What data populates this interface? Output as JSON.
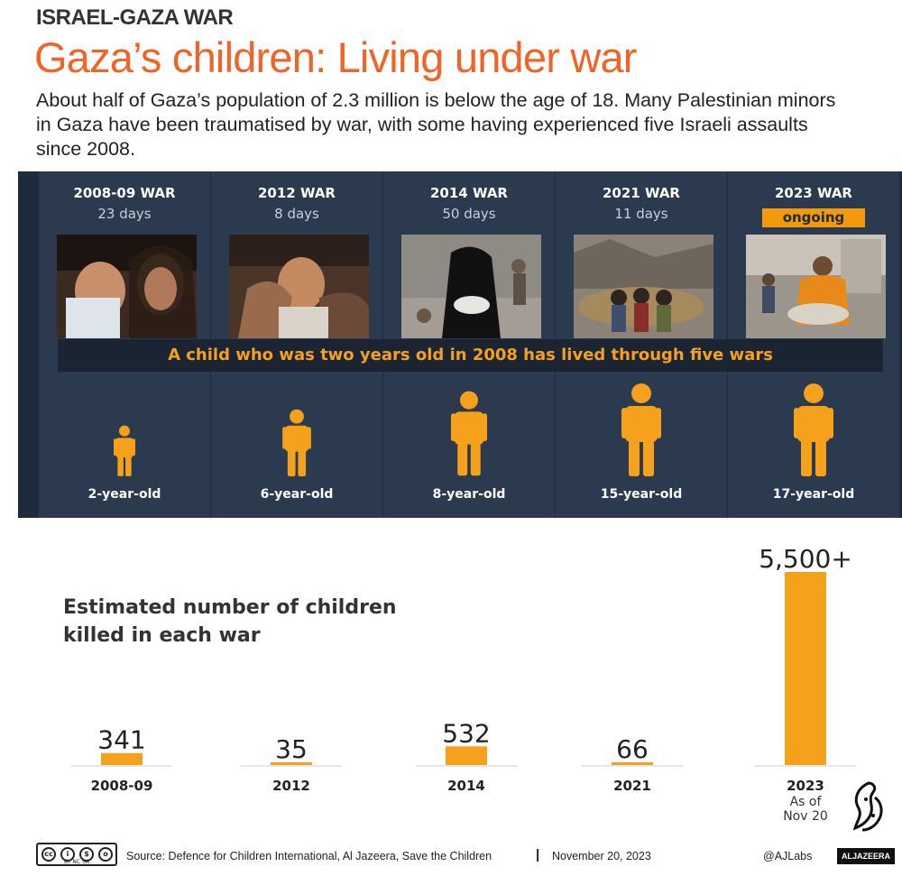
{
  "header": {
    "kicker": "ISRAEL-GAZA WAR",
    "title": "Gaza’s children: Living under war",
    "intro": "About half of Gaza’s population of 2.3 million is below the age of 18. Many Palestinian minors in Gaza have been traumatised by war, with some having experienced five Israeli assaults since 2008."
  },
  "wars": [
    {
      "title": "2008-09 WAR",
      "days": "23 days",
      "age": "2-year-old",
      "figure_scale": 0.55
    },
    {
      "title": "2012 WAR",
      "days": "8 days",
      "age": "6-year-old",
      "figure_scale": 0.72
    },
    {
      "title": "2014 WAR",
      "days": "50 days",
      "age": "8-year-old",
      "figure_scale": 0.92
    },
    {
      "title": "2021 WAR",
      "days": "11 days",
      "age": "15-year-old",
      "figure_scale": 1.0
    },
    {
      "title": "2023 WAR",
      "days": "ongoing",
      "age": "17-year-old",
      "figure_scale": 1.0
    }
  ],
  "banner": "A child who was two years old in 2008 has lived through five wars",
  "chart_data": {
    "type": "bar",
    "title": "Estimated number of children killed in each war",
    "categories": [
      "2008-09",
      "2012",
      "2014",
      "2021",
      "2023"
    ],
    "values": [
      341,
      35,
      532,
      66,
      5500
    ],
    "value_labels": [
      "341",
      "35",
      "532",
      "66",
      "5,500+"
    ],
    "category_notes": [
      "",
      "",
      "",
      "",
      "As of Nov 20"
    ],
    "ylim": [
      0,
      5500
    ],
    "grid": false,
    "legend": "none",
    "bar_color": "#f5a11b"
  },
  "footer": {
    "cc_label": "BY  NC  SA",
    "source": "Source: Defence for Children International, Al Jazeera, Save the Children",
    "separator": "|",
    "date": "November 20, 2023",
    "handle": "@AJLabs",
    "brand": "ALJAZEERA"
  },
  "colors": {
    "accent": "#f06427",
    "orange": "#f5a11b",
    "panel": "#1e2b3c",
    "column": "#2b3a4e"
  }
}
